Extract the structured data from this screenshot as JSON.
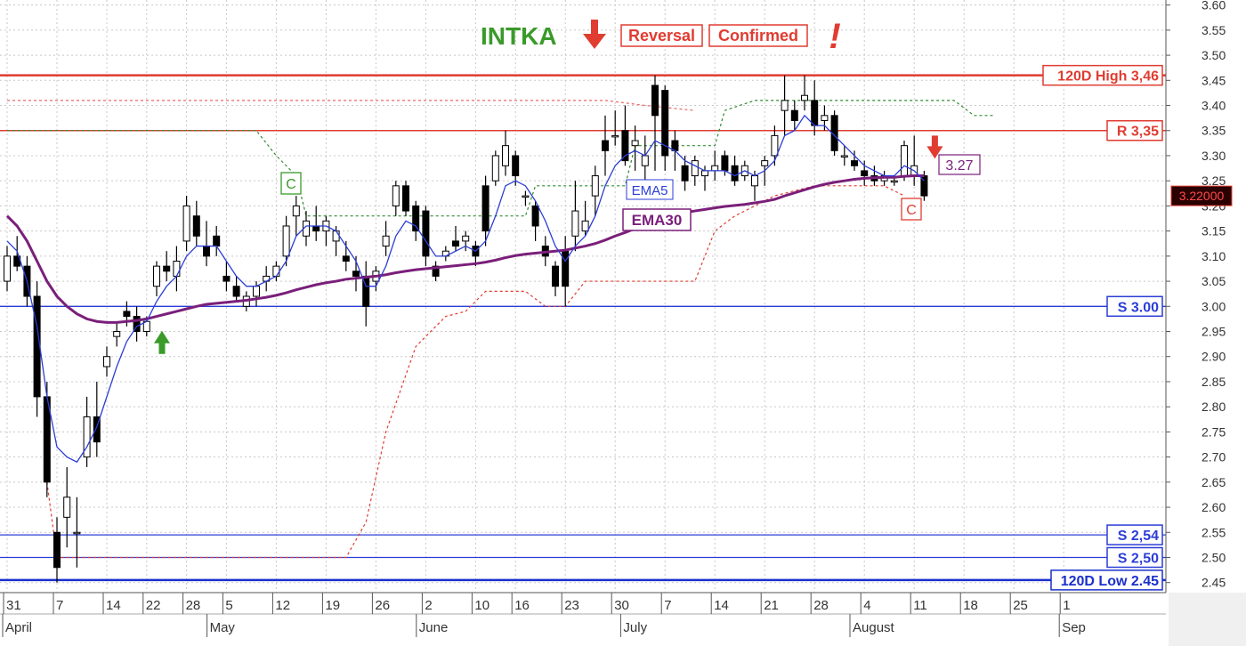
{
  "chart_data": {
    "type": "candlestick",
    "ticker": "INTKA",
    "banner": {
      "label1": "Reversal",
      "label2": "Confirmed",
      "exclaim": "!"
    },
    "ylim": [
      2.43,
      3.61
    ],
    "yticks": [
      "2.45",
      "2.50",
      "2.55",
      "2.60",
      "2.65",
      "2.70",
      "2.75",
      "2.80",
      "2.85",
      "2.90",
      "2.95",
      "3.00",
      "3.05",
      "3.10",
      "3.15",
      "3.20",
      "3.25",
      "3.30",
      "3.35",
      "3.40",
      "3.45",
      "3.50",
      "3.55",
      "3.60"
    ],
    "xticks": [
      {
        "i": 0,
        "label": "31"
      },
      {
        "i": 5,
        "label": "7"
      },
      {
        "i": 10,
        "label": "14"
      },
      {
        "i": 14,
        "label": "22"
      },
      {
        "i": 18,
        "label": "28"
      },
      {
        "i": 22,
        "label": "5"
      },
      {
        "i": 27,
        "label": "12"
      },
      {
        "i": 32,
        "label": "19"
      },
      {
        "i": 37,
        "label": "26"
      },
      {
        "i": 42,
        "label": "2"
      },
      {
        "i": 47,
        "label": "10"
      },
      {
        "i": 51,
        "label": "16"
      },
      {
        "i": 56,
        "label": "23"
      },
      {
        "i": 61,
        "label": "30"
      },
      {
        "i": 66,
        "label": "7"
      },
      {
        "i": 71,
        "label": "14"
      },
      {
        "i": 76,
        "label": "21"
      },
      {
        "i": 81,
        "label": "28"
      },
      {
        "i": 86,
        "label": "4"
      },
      {
        "i": 91,
        "label": "11"
      },
      {
        "i": 96,
        "label": "18"
      },
      {
        "i": 101,
        "label": "25"
      },
      {
        "i": 106,
        "label": "1"
      }
    ],
    "months": [
      {
        "i": 0,
        "label": "April"
      },
      {
        "i": 20.5,
        "label": "May"
      },
      {
        "i": 41.5,
        "label": "June"
      },
      {
        "i": 62,
        "label": "July"
      },
      {
        "i": 85,
        "label": "August"
      },
      {
        "i": 106,
        "label": "Sep"
      }
    ],
    "levels": [
      {
        "label": "120D High 3,46",
        "value": 3.46,
        "color": "#e03c31",
        "width": 2.5
      },
      {
        "label": "R 3,35",
        "value": 3.35,
        "color": "#e03c31",
        "width": 1.5
      },
      {
        "label": "S 3.00",
        "value": 3.0,
        "color": "#2b3dd6",
        "width": 1.3
      },
      {
        "label": "S 2,54",
        "value": 2.545,
        "color": "#2b3dd6",
        "width": 1.3
      },
      {
        "label": "S 2,50",
        "value": 2.5,
        "color": "#2b3dd6",
        "width": 1.3
      },
      {
        "label": "120D Low 2.45",
        "value": 2.455,
        "color": "#1a2fcc",
        "width": 2.5
      }
    ],
    "last_price": "3.22000",
    "annotations": {
      "value_box": "3.27",
      "c_marker_1": "C",
      "c_marker_2": "C",
      "ema5": "EMA5",
      "ema30": "EMA30"
    },
    "candles": [
      [
        3.05,
        3.12,
        3.03,
        3.1
      ],
      [
        3.1,
        3.14,
        3.07,
        3.08
      ],
      [
        3.08,
        3.1,
        3.0,
        3.02
      ],
      [
        3.02,
        3.05,
        2.78,
        2.82
      ],
      [
        2.82,
        2.85,
        2.62,
        2.65
      ],
      [
        2.55,
        2.58,
        2.45,
        2.48
      ],
      [
        2.58,
        2.68,
        2.52,
        2.62
      ],
      [
        2.55,
        2.62,
        2.48,
        2.55
      ],
      [
        2.7,
        2.82,
        2.68,
        2.78
      ],
      [
        2.78,
        2.85,
        2.7,
        2.73
      ],
      [
        2.88,
        2.92,
        2.86,
        2.9
      ],
      [
        2.94,
        2.97,
        2.92,
        2.95
      ],
      [
        2.99,
        3.01,
        2.96,
        2.98
      ],
      [
        2.98,
        3.0,
        2.93,
        2.95
      ],
      [
        2.95,
        2.98,
        2.94,
        2.97
      ],
      [
        3.04,
        3.09,
        3.02,
        3.08
      ],
      [
        3.08,
        3.11,
        3.05,
        3.07
      ],
      [
        3.06,
        3.12,
        3.03,
        3.09
      ],
      [
        3.13,
        3.22,
        3.11,
        3.2
      ],
      [
        3.18,
        3.21,
        3.12,
        3.14
      ],
      [
        3.12,
        3.17,
        3.08,
        3.1
      ],
      [
        3.14,
        3.16,
        3.1,
        3.12
      ],
      [
        3.06,
        3.09,
        3.03,
        3.05
      ],
      [
        3.04,
        3.06,
        3.01,
        3.02
      ],
      [
        3.0,
        3.03,
        2.99,
        3.02
      ],
      [
        3.02,
        3.05,
        3.0,
        3.04
      ],
      [
        3.05,
        3.08,
        3.03,
        3.06
      ],
      [
        3.06,
        3.09,
        3.05,
        3.08
      ],
      [
        3.1,
        3.18,
        3.08,
        3.16
      ],
      [
        3.18,
        3.22,
        3.14,
        3.2
      ],
      [
        3.14,
        3.19,
        3.12,
        3.17
      ],
      [
        3.16,
        3.2,
        3.13,
        3.15
      ],
      [
        3.15,
        3.18,
        3.12,
        3.17
      ],
      [
        3.13,
        3.16,
        3.1,
        3.15
      ],
      [
        3.1,
        3.13,
        3.07,
        3.09
      ],
      [
        3.07,
        3.1,
        3.03,
        3.06
      ],
      [
        3.06,
        3.09,
        2.96,
        3.0
      ],
      [
        3.05,
        3.08,
        3.03,
        3.07
      ],
      [
        3.12,
        3.17,
        3.1,
        3.14
      ],
      [
        3.2,
        3.25,
        3.18,
        3.24
      ],
      [
        3.24,
        3.25,
        3.18,
        3.19
      ],
      [
        3.2,
        3.21,
        3.13,
        3.15
      ],
      [
        3.19,
        3.2,
        3.08,
        3.1
      ],
      [
        3.08,
        3.09,
        3.05,
        3.06
      ],
      [
        3.1,
        3.12,
        3.09,
        3.11
      ],
      [
        3.13,
        3.16,
        3.11,
        3.12
      ],
      [
        3.13,
        3.15,
        3.11,
        3.14
      ],
      [
        3.12,
        3.13,
        3.08,
        3.1
      ],
      [
        3.24,
        3.26,
        3.12,
        3.15
      ],
      [
        3.25,
        3.31,
        3.24,
        3.3
      ],
      [
        3.28,
        3.35,
        3.26,
        3.32
      ],
      [
        3.3,
        3.31,
        3.24,
        3.26
      ],
      [
        3.22,
        3.23,
        3.2,
        3.22
      ],
      [
        3.2,
        3.21,
        3.13,
        3.16
      ],
      [
        3.12,
        3.14,
        3.08,
        3.1
      ],
      [
        3.08,
        3.09,
        3.02,
        3.04
      ],
      [
        3.11,
        3.14,
        3.0,
        3.04
      ],
      [
        3.14,
        3.25,
        3.11,
        3.19
      ],
      [
        3.15,
        3.21,
        3.14,
        3.17
      ],
      [
        3.22,
        3.28,
        3.18,
        3.26
      ],
      [
        3.33,
        3.38,
        3.26,
        3.31
      ],
      [
        3.34,
        3.39,
        3.32,
        3.34
      ],
      [
        3.35,
        3.4,
        3.28,
        3.29
      ],
      [
        3.32,
        3.36,
        3.27,
        3.33
      ],
      [
        3.28,
        3.34,
        3.25,
        3.3
      ],
      [
        3.44,
        3.46,
        3.27,
        3.38
      ],
      [
        3.43,
        3.44,
        3.27,
        3.3
      ],
      [
        3.33,
        3.35,
        3.27,
        3.31
      ],
      [
        3.28,
        3.3,
        3.23,
        3.25
      ],
      [
        3.26,
        3.3,
        3.24,
        3.29
      ],
      [
        3.26,
        3.28,
        3.23,
        3.27
      ],
      [
        3.27,
        3.31,
        3.25,
        3.28
      ],
      [
        3.3,
        3.31,
        3.26,
        3.27
      ],
      [
        3.28,
        3.3,
        3.24,
        3.25
      ],
      [
        3.26,
        3.29,
        3.25,
        3.28
      ],
      [
        3.24,
        3.27,
        3.21,
        3.26
      ],
      [
        3.28,
        3.3,
        3.24,
        3.29
      ],
      [
        3.3,
        3.36,
        3.28,
        3.34
      ],
      [
        3.39,
        3.46,
        3.34,
        3.41
      ],
      [
        3.39,
        3.41,
        3.35,
        3.37
      ],
      [
        3.41,
        3.46,
        3.39,
        3.42
      ],
      [
        3.41,
        3.45,
        3.34,
        3.36
      ],
      [
        3.37,
        3.4,
        3.35,
        3.38
      ],
      [
        3.38,
        3.39,
        3.3,
        3.31
      ],
      [
        3.3,
        3.32,
        3.28,
        3.3
      ],
      [
        3.29,
        3.31,
        3.27,
        3.28
      ],
      [
        3.27,
        3.29,
        3.24,
        3.26
      ],
      [
        3.26,
        3.28,
        3.24,
        3.25
      ],
      [
        3.25,
        3.27,
        3.24,
        3.26
      ],
      [
        3.25,
        3.26,
        3.24,
        3.25
      ],
      [
        3.26,
        3.33,
        3.25,
        3.32
      ],
      [
        3.26,
        3.34,
        3.24,
        3.28
      ],
      [
        3.26,
        3.27,
        3.21,
        3.22
      ]
    ],
    "ema5": [
      3.13,
      3.11,
      3.05,
      2.96,
      2.82,
      2.72,
      2.7,
      2.69,
      2.72,
      2.76,
      2.82,
      2.88,
      2.93,
      2.96,
      2.97,
      3.01,
      3.04,
      3.06,
      3.1,
      3.12,
      3.12,
      3.12,
      3.09,
      3.06,
      3.04,
      3.04,
      3.05,
      3.06,
      3.09,
      3.14,
      3.16,
      3.16,
      3.16,
      3.15,
      3.12,
      3.09,
      3.04,
      3.04,
      3.08,
      3.14,
      3.17,
      3.16,
      3.13,
      3.1,
      3.1,
      3.11,
      3.12,
      3.11,
      3.13,
      3.18,
      3.24,
      3.25,
      3.24,
      3.21,
      3.17,
      3.12,
      3.09,
      3.12,
      3.14,
      3.18,
      3.24,
      3.28,
      3.3,
      3.31,
      3.3,
      3.33,
      3.32,
      3.31,
      3.29,
      3.28,
      3.27,
      3.27,
      3.27,
      3.26,
      3.27,
      3.26,
      3.27,
      3.29,
      3.34,
      3.35,
      3.38,
      3.36,
      3.36,
      3.34,
      3.32,
      3.3,
      3.28,
      3.27,
      3.26,
      3.26,
      3.28,
      3.27,
      3.25
    ],
    "ema30": [
      3.18,
      3.16,
      3.13,
      3.09,
      3.05,
      3.02,
      3.0,
      2.985,
      2.975,
      2.97,
      2.968,
      2.968,
      2.97,
      2.972,
      2.975,
      2.98,
      2.985,
      2.99,
      2.995,
      3.0,
      3.004,
      3.006,
      3.008,
      3.01,
      3.012,
      3.015,
      3.018,
      3.022,
      3.027,
      3.033,
      3.038,
      3.043,
      3.047,
      3.05,
      3.054,
      3.056,
      3.058,
      3.06,
      3.063,
      3.067,
      3.07,
      3.073,
      3.075,
      3.077,
      3.079,
      3.081,
      3.083,
      3.085,
      3.088,
      3.092,
      3.097,
      3.101,
      3.104,
      3.106,
      3.108,
      3.11,
      3.112,
      3.116,
      3.12,
      3.125,
      3.132,
      3.14,
      3.147,
      3.155,
      3.162,
      3.171,
      3.178,
      3.183,
      3.187,
      3.19,
      3.193,
      3.196,
      3.199,
      3.201,
      3.203,
      3.206,
      3.209,
      3.213,
      3.22,
      3.226,
      3.232,
      3.238,
      3.243,
      3.247,
      3.25,
      3.253,
      3.255,
      3.256,
      3.257,
      3.257,
      3.259,
      3.26,
      3.26
    ],
    "stop_green": [
      [
        0,
        3.35
      ],
      [
        25,
        3.35
      ],
      [
        27,
        3.3
      ],
      [
        29,
        3.26
      ],
      [
        30,
        3.18
      ],
      [
        52,
        3.18
      ],
      [
        53,
        3.24
      ],
      [
        62,
        3.24
      ],
      [
        63,
        3.32
      ],
      [
        71,
        3.32
      ],
      [
        72,
        3.39
      ],
      [
        75,
        3.41
      ],
      [
        95,
        3.41
      ],
      [
        97,
        3.38
      ],
      [
        99,
        3.38
      ]
    ],
    "stop_red": [
      [
        0,
        3.41
      ],
      [
        60,
        3.41
      ],
      [
        64,
        3.4
      ],
      [
        69,
        3.39
      ]
    ],
    "stop_red2": [
      [
        4,
        2.65
      ],
      [
        5,
        2.5
      ],
      [
        34,
        2.5
      ],
      [
        36,
        2.57
      ],
      [
        38,
        2.75
      ],
      [
        41,
        2.92
      ],
      [
        44,
        2.98
      ],
      [
        46,
        2.99
      ],
      [
        48,
        3.03
      ],
      [
        52,
        3.03
      ],
      [
        54,
        3.0
      ],
      [
        56,
        3.0
      ],
      [
        58,
        3.05
      ],
      [
        69,
        3.05
      ],
      [
        71,
        3.15
      ],
      [
        73,
        3.18
      ],
      [
        75,
        3.2
      ],
      [
        77,
        3.22
      ],
      [
        81,
        3.24
      ],
      [
        88,
        3.24
      ],
      [
        90,
        3.22
      ]
    ],
    "up_arrow_index": 15,
    "down_arrow_index": 92
  }
}
